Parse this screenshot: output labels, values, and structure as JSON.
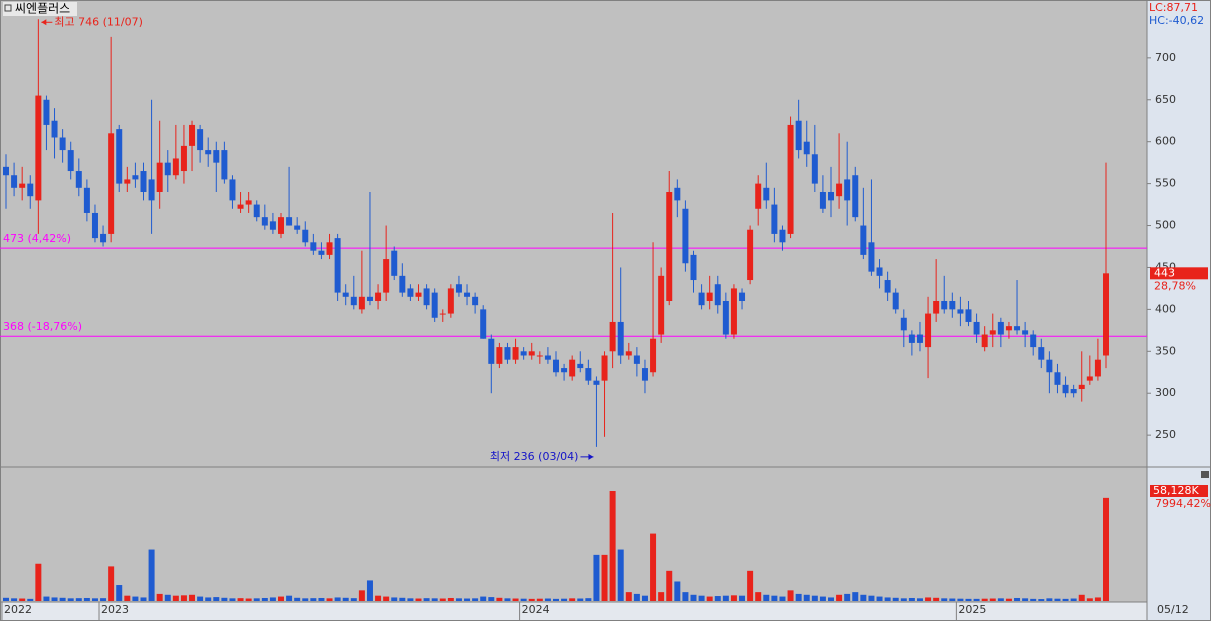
{
  "chart_data": {
    "type": "candlestick",
    "title": "씨엔플러스",
    "up_color": "#e8231b",
    "down_color": "#1f5bd0",
    "ylim": [
      212,
      769
    ],
    "yticks": [
      250,
      300,
      350,
      400,
      450,
      500,
      550,
      600,
      650,
      700
    ],
    "categories_labels": [
      {
        "index": 0,
        "label": "2022"
      },
      {
        "index": 12,
        "label": "2023"
      },
      {
        "index": 64,
        "label": "2024"
      },
      {
        "index": 118,
        "label": "2025"
      }
    ],
    "last_date": "05/12",
    "lc": "LC:87,71",
    "hc": "HC:-40,62",
    "levels": [
      {
        "value": 473,
        "label": "473 (4,42%)"
      },
      {
        "value": 368,
        "label": "368 (-18,76%)"
      }
    ],
    "level_color": "#ff00ff",
    "high_note": {
      "index": 4,
      "value": 746,
      "label": "최고 746 (11/07)",
      "color": "#e8231b"
    },
    "low_note": {
      "index": 73,
      "value": 236,
      "label": "최저 236 (03/04)",
      "color": "#1414c8"
    },
    "last_price": {
      "value": 443,
      "label": "443",
      "change": "28,78%"
    },
    "last_volume": {
      "value": 58128,
      "label": "58,128K",
      "change": "7994,42%"
    },
    "ohlc": [
      [
        570,
        585,
        520,
        560
      ],
      [
        560,
        575,
        535,
        545
      ],
      [
        545,
        570,
        530,
        550
      ],
      [
        550,
        560,
        520,
        535
      ],
      [
        530,
        746,
        490,
        655
      ],
      [
        650,
        655,
        590,
        620
      ],
      [
        625,
        640,
        580,
        605
      ],
      [
        605,
        615,
        575,
        590
      ],
      [
        590,
        600,
        555,
        565
      ],
      [
        565,
        580,
        535,
        545
      ],
      [
        545,
        555,
        505,
        515
      ],
      [
        515,
        525,
        480,
        485
      ],
      [
        490,
        500,
        475,
        480
      ],
      [
        490,
        725,
        480,
        610
      ],
      [
        615,
        620,
        540,
        550
      ],
      [
        550,
        570,
        540,
        555
      ],
      [
        560,
        575,
        545,
        555
      ],
      [
        565,
        575,
        530,
        540
      ],
      [
        555,
        650,
        490,
        530
      ],
      [
        540,
        625,
        520,
        575
      ],
      [
        575,
        590,
        540,
        560
      ],
      [
        560,
        620,
        555,
        580
      ],
      [
        565,
        620,
        550,
        595
      ],
      [
        595,
        625,
        565,
        620
      ],
      [
        615,
        620,
        575,
        590
      ],
      [
        590,
        605,
        570,
        585
      ],
      [
        590,
        600,
        540,
        575
      ],
      [
        590,
        600,
        550,
        555
      ],
      [
        555,
        560,
        520,
        530
      ],
      [
        520,
        540,
        515,
        525
      ],
      [
        525,
        540,
        515,
        530
      ],
      [
        525,
        530,
        505,
        510
      ],
      [
        510,
        525,
        495,
        500
      ],
      [
        505,
        515,
        490,
        495
      ],
      [
        490,
        515,
        485,
        510
      ],
      [
        510,
        570,
        500,
        500
      ],
      [
        500,
        510,
        490,
        495
      ],
      [
        495,
        505,
        475,
        480
      ],
      [
        480,
        490,
        465,
        470
      ],
      [
        470,
        480,
        460,
        465
      ],
      [
        465,
        490,
        460,
        480
      ],
      [
        485,
        490,
        410,
        420
      ],
      [
        420,
        430,
        405,
        415
      ],
      [
        415,
        440,
        400,
        405
      ],
      [
        400,
        470,
        395,
        415
      ],
      [
        415,
        540,
        405,
        410
      ],
      [
        410,
        430,
        400,
        420
      ],
      [
        420,
        500,
        410,
        460
      ],
      [
        470,
        475,
        435,
        440
      ],
      [
        440,
        455,
        415,
        420
      ],
      [
        425,
        430,
        410,
        415
      ],
      [
        415,
        430,
        410,
        420
      ],
      [
        425,
        430,
        400,
        405
      ],
      [
        420,
        425,
        385,
        390
      ],
      [
        395,
        400,
        385,
        395
      ],
      [
        395,
        430,
        390,
        425
      ],
      [
        430,
        440,
        415,
        420
      ],
      [
        420,
        430,
        405,
        415
      ],
      [
        415,
        420,
        395,
        405
      ],
      [
        400,
        405,
        365,
        365
      ],
      [
        365,
        370,
        300,
        335
      ],
      [
        335,
        360,
        330,
        355
      ],
      [
        355,
        360,
        335,
        340
      ],
      [
        340,
        365,
        335,
        355
      ],
      [
        350,
        355,
        340,
        345
      ],
      [
        345,
        360,
        340,
        350
      ],
      [
        345,
        350,
        335,
        345
      ],
      [
        345,
        355,
        335,
        340
      ],
      [
        340,
        350,
        320,
        325
      ],
      [
        330,
        335,
        315,
        325
      ],
      [
        320,
        345,
        315,
        340
      ],
      [
        335,
        350,
        325,
        330
      ],
      [
        330,
        340,
        310,
        315
      ],
      [
        315,
        320,
        236,
        310
      ],
      [
        315,
        350,
        248,
        345
      ],
      [
        350,
        515,
        330,
        385
      ],
      [
        385,
        450,
        335,
        345
      ],
      [
        345,
        360,
        340,
        350
      ],
      [
        345,
        355,
        320,
        335
      ],
      [
        330,
        340,
        300,
        315
      ],
      [
        325,
        480,
        320,
        365
      ],
      [
        370,
        450,
        360,
        440
      ],
      [
        410,
        565,
        405,
        540
      ],
      [
        545,
        555,
        510,
        530
      ],
      [
        520,
        530,
        445,
        455
      ],
      [
        465,
        470,
        420,
        435
      ],
      [
        420,
        430,
        400,
        405
      ],
      [
        410,
        440,
        400,
        420
      ],
      [
        430,
        440,
        395,
        405
      ],
      [
        410,
        420,
        365,
        370
      ],
      [
        370,
        430,
        365,
        425
      ],
      [
        420,
        425,
        400,
        410
      ],
      [
        435,
        500,
        430,
        495
      ],
      [
        520,
        560,
        500,
        550
      ],
      [
        545,
        575,
        520,
        530
      ],
      [
        525,
        545,
        480,
        490
      ],
      [
        495,
        500,
        470,
        480
      ],
      [
        490,
        630,
        485,
        620
      ],
      [
        625,
        650,
        580,
        590
      ],
      [
        600,
        625,
        570,
        585
      ],
      [
        585,
        620,
        540,
        550
      ],
      [
        540,
        560,
        515,
        520
      ],
      [
        540,
        570,
        510,
        530
      ],
      [
        535,
        610,
        520,
        550
      ],
      [
        555,
        600,
        500,
        530
      ],
      [
        560,
        570,
        505,
        510
      ],
      [
        500,
        545,
        460,
        465
      ],
      [
        480,
        555,
        440,
        445
      ],
      [
        450,
        460,
        425,
        440
      ],
      [
        435,
        445,
        410,
        420
      ],
      [
        420,
        425,
        395,
        400
      ],
      [
        390,
        400,
        355,
        375
      ],
      [
        370,
        375,
        345,
        360
      ],
      [
        370,
        385,
        350,
        360
      ],
      [
        355,
        415,
        318,
        395
      ],
      [
        395,
        460,
        385,
        410
      ],
      [
        410,
        440,
        395,
        400
      ],
      [
        410,
        420,
        390,
        400
      ],
      [
        400,
        415,
        380,
        395
      ],
      [
        400,
        410,
        380,
        385
      ],
      [
        385,
        395,
        360,
        370
      ],
      [
        355,
        380,
        350,
        370
      ],
      [
        370,
        395,
        355,
        375
      ],
      [
        385,
        390,
        355,
        370
      ],
      [
        375,
        385,
        365,
        380
      ],
      [
        380,
        435,
        370,
        375
      ],
      [
        375,
        385,
        355,
        370
      ],
      [
        370,
        375,
        345,
        355
      ],
      [
        355,
        365,
        330,
        340
      ],
      [
        340,
        350,
        300,
        325
      ],
      [
        325,
        335,
        300,
        310
      ],
      [
        310,
        320,
        295,
        300
      ],
      [
        305,
        310,
        295,
        300
      ],
      [
        305,
        350,
        290,
        310
      ],
      [
        315,
        345,
        310,
        320
      ],
      [
        320,
        365,
        315,
        340
      ],
      [
        345,
        575,
        330,
        443
      ]
    ],
    "volume": [
      1800,
      1500,
      1400,
      1200,
      21000,
      2500,
      2000,
      1800,
      1500,
      1600,
      1700,
      1500,
      1600,
      19500,
      9000,
      3000,
      2500,
      2000,
      29000,
      4000,
      3500,
      3000,
      3200,
      3500,
      2500,
      2000,
      2200,
      1800,
      1500,
      1600,
      1400,
      1500,
      1700,
      2000,
      2500,
      3000,
      1800,
      1500,
      1600,
      1700,
      1500,
      2000,
      1800,
      1600,
      6000,
      11600,
      3000,
      2500,
      2000,
      1800,
      1500,
      1400,
      1600,
      1500,
      1400,
      1700,
      1500,
      1400,
      1500,
      2500,
      2200,
      1800,
      1500,
      1400,
      1300,
      1200,
      1300,
      1400,
      1200,
      1300,
      1500,
      1400,
      1600,
      26000,
      26000,
      62000,
      29000,
      5000,
      4000,
      3000,
      38000,
      5000,
      17000,
      11000,
      5000,
      3500,
      3000,
      2500,
      2800,
      3000,
      3200,
      3000,
      17000,
      5000,
      3500,
      3000,
      2500,
      6000,
      4000,
      3500,
      3000,
      2500,
      2000,
      3500,
      4000,
      5000,
      3500,
      3000,
      2500,
      2000,
      1800,
      1500,
      1700,
      1500,
      2000,
      1800,
      1500,
      1400,
      1300,
      1200,
      1200,
      1300,
      1400,
      1500,
      1300,
      1700,
      1500,
      1200,
      1100,
      1500,
      1300,
      1200,
      1400,
      3500,
      1500,
      2000,
      58128
    ]
  }
}
